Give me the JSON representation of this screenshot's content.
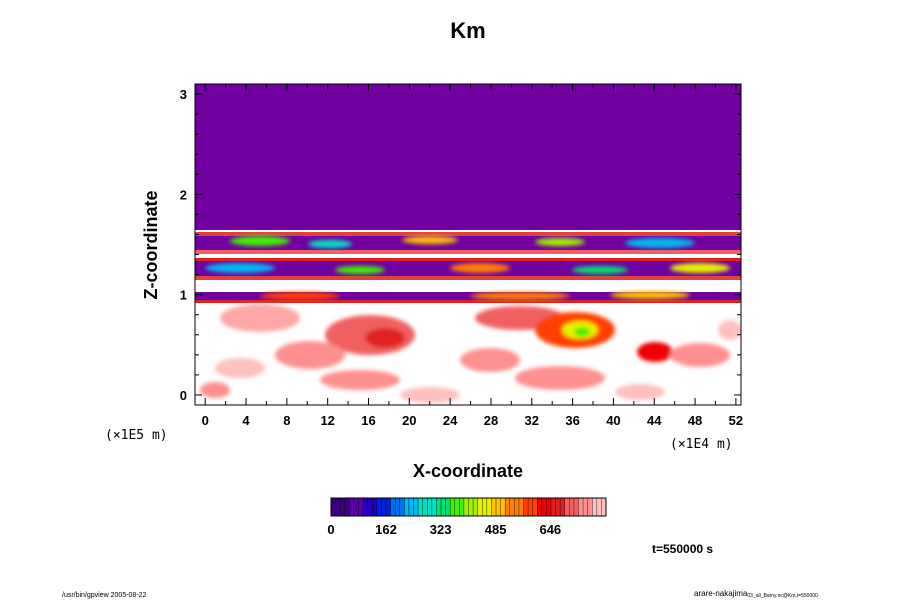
{
  "chart_data": {
    "type": "heatmap",
    "title": "Km",
    "xlabel": "X-coordinate",
    "ylabel": "Z-coordinate",
    "x_unit": "(×1E4 m)",
    "y_unit": "(×1E5 m)",
    "xlim": [
      -1,
      52.5
    ],
    "ylim": [
      -0.1,
      3.1
    ],
    "x_ticks": [
      "0",
      "4",
      "8",
      "12",
      "16",
      "20",
      "24",
      "28",
      "32",
      "36",
      "40",
      "44",
      "48",
      "52"
    ],
    "y_ticks": [
      "0",
      "1",
      "2",
      "3"
    ],
    "colorbar": {
      "min": 0,
      "max": 810,
      "tick_labels": [
        "0",
        "162",
        "323",
        "485",
        "646"
      ],
      "tick_values": [
        0,
        162,
        323,
        485,
        646
      ],
      "colors": [
        "#3a0080",
        "#5a00a8",
        "#2000c0",
        "#0020e0",
        "#0070f0",
        "#00b8f0",
        "#00e0c0",
        "#00e070",
        "#40f000",
        "#a0f000",
        "#e8f000",
        "#ffc000",
        "#ff8000",
        "#ff4000",
        "#f00000",
        "#e02020",
        "#f06060",
        "#ff9090",
        "#ffc0c0"
      ]
    },
    "time_label": "t=550000 s",
    "background_color": "#7000a0"
  },
  "footer": {
    "left": "/usr/bin/gpview 2005-08-22",
    "right_main": "arare-nakajima",
    "right_small": "03_all_Barny.nc@Km,t=550000"
  }
}
